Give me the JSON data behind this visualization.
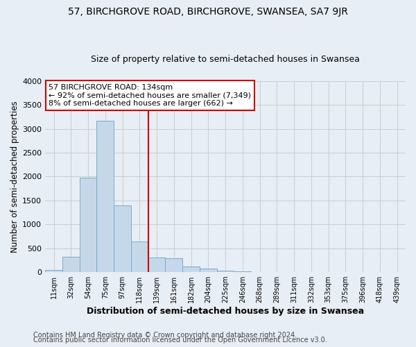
{
  "title1": "57, BIRCHGROVE ROAD, BIRCHGROVE, SWANSEA, SA7 9JR",
  "title2": "Size of property relative to semi-detached houses in Swansea",
  "xlabel": "Distribution of semi-detached houses by size in Swansea",
  "ylabel": "Number of semi-detached properties",
  "footer1": "Contains HM Land Registry data © Crown copyright and database right 2024.",
  "footer2": "Contains public sector information licensed under the Open Government Licence v3.0.",
  "categories": [
    "11sqm",
    "32sqm",
    "54sqm",
    "75sqm",
    "97sqm",
    "118sqm",
    "139sqm",
    "161sqm",
    "182sqm",
    "204sqm",
    "225sqm",
    "246sqm",
    "268sqm",
    "289sqm",
    "311sqm",
    "332sqm",
    "353sqm",
    "375sqm",
    "396sqm",
    "418sqm",
    "439sqm"
  ],
  "values": [
    50,
    320,
    1980,
    3170,
    1390,
    640,
    300,
    290,
    115,
    70,
    35,
    10,
    5,
    5,
    5,
    0,
    0,
    0,
    0,
    0,
    0
  ],
  "bar_color": "#c5d8ea",
  "bar_edge_color": "#7aaac8",
  "marker_label": "57 BIRCHGROVE ROAD: 134sqm",
  "pct_smaller": "92% of semi-detached houses are smaller (7,349)",
  "pct_larger": "8% of semi-detached houses are larger (662)",
  "annotation_box_color": "#ffffff",
  "annotation_box_edge": "#cc0000",
  "marker_line_color": "#cc0000",
  "grid_color": "#cccccc",
  "bg_color": "#e8eef5",
  "ylim": [
    0,
    4000
  ],
  "title1_fontsize": 10,
  "title2_fontsize": 9,
  "xlabel_fontsize": 9,
  "ylabel_fontsize": 8.5,
  "ann_fontsize": 8,
  "footer_fontsize": 7
}
